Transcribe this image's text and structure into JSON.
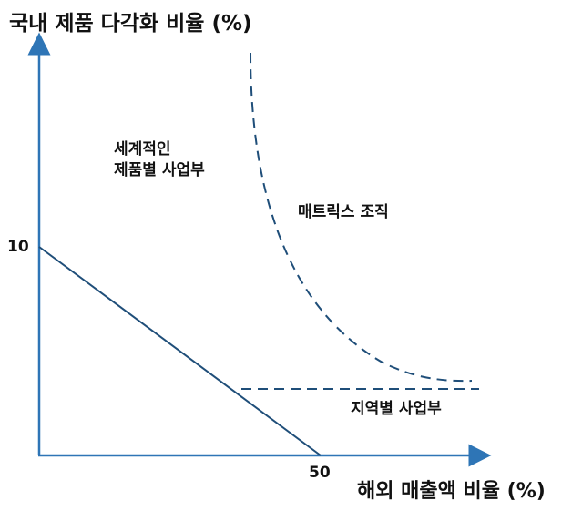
{
  "axes": {
    "y_title": "국내 제품 다각화 비율 (%)",
    "x_title": "해외 매출액 비율 (%)",
    "y_tick": "10",
    "x_tick": "50"
  },
  "regions": {
    "global_product_line1": "세계적인",
    "global_product_line2": "제품별 사업부",
    "matrix": "매트릭스 조직",
    "area_division": "지역별 사업부"
  },
  "colors": {
    "line": "#1f4e79",
    "axis": "#2e75b6",
    "text": "#111111"
  }
}
